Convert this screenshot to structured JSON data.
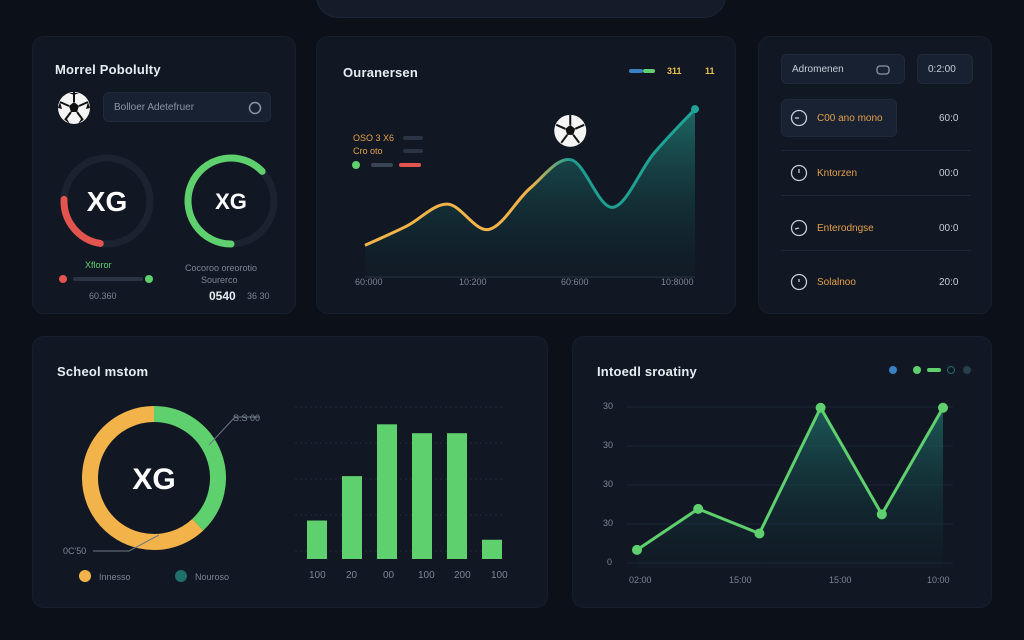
{
  "colors": {
    "accent_green": "#5fd06e",
    "accent_orange": "#f2b44a",
    "accent_red": "#e4544e",
    "accent_teal": "#1f6f6a",
    "card_bg": "#111823",
    "page_bg": "#0b1019"
  },
  "icons": {
    "ball": "soccer-ball-icon",
    "search": "search-icon",
    "clock": "clock-icon"
  },
  "probability": {
    "title": "Morrel Pobolulty",
    "search_placeholder": "Bolloer   Adetefruer",
    "gauge_left": {
      "label": "XG",
      "value": 0.42
    },
    "gauge_right": {
      "label": "XG",
      "value": 0.74
    },
    "legend_left_top": "Xfloror",
    "legend_left_bottom": "60.360",
    "legend_right_top": "Cocoroo oreorotio",
    "legend_right_mid": "Sourerco",
    "legend_right_value": "0540",
    "legend_right_tail": "36 30"
  },
  "momentum": {
    "title": "Ouranersen",
    "legend_values": [
      "311",
      "11"
    ],
    "mini_legend": [
      "OSO 3 X6",
      "Cro oto"
    ],
    "x_labels": [
      "60:000",
      "10:200",
      "60:600",
      "10:8000"
    ],
    "chart_data": {
      "type": "area",
      "series": [
        {
          "values": [
            2,
            3.2,
            4.6,
            3.0,
            5.6,
            7.4,
            4.4,
            7.8,
            10.6
          ]
        }
      ],
      "x": [
        "60:000",
        "",
        "10:200",
        "",
        "60:600",
        "",
        "",
        "",
        "10:8000"
      ],
      "ylim": [
        0,
        12
      ]
    }
  },
  "schedule": {
    "header_left": "Adromenen",
    "header_right": "0:2:00",
    "rows": [
      {
        "label": "C00 ano mono",
        "time": "60:0"
      },
      {
        "label": "Kntorzen",
        "time": "00:0"
      },
      {
        "label": "Enterodngse",
        "time": "00:0"
      },
      {
        "label": "Solalnoo",
        "time": "20:0"
      }
    ]
  },
  "distribution": {
    "title": "Scheol mstom",
    "donut_label": "XG",
    "donut_share_green": 0.38,
    "callout_top": "S.S 00",
    "callout_bottom": "0C'50",
    "legend": [
      "Innesso",
      "Nouroso"
    ],
    "bar_labels": [
      "100",
      "20",
      "00",
      "100",
      "200",
      "100"
    ],
    "chart_data": {
      "type": "bar",
      "categories": [
        "100",
        "20",
        "00",
        "100",
        "200",
        "100"
      ],
      "values": [
        26,
        56,
        91,
        85,
        85,
        13
      ],
      "ylim": [
        0,
        100
      ]
    }
  },
  "intensity": {
    "title": "Intoedl sroatiny",
    "y_labels": [
      "0",
      "30",
      "30",
      "30",
      "30",
      "30"
    ],
    "x_labels": [
      "02:00",
      "15:00",
      "15:00",
      "10:00"
    ],
    "chart_data": {
      "type": "area",
      "series": [
        {
          "values": [
            0.7,
            2.2,
            1.3,
            5.9,
            2.0,
            5.9
          ]
        }
      ],
      "x": [
        "02:00",
        "",
        "15:00",
        "",
        "15:00",
        "10:00"
      ],
      "ylim": [
        0,
        6
      ]
    }
  }
}
